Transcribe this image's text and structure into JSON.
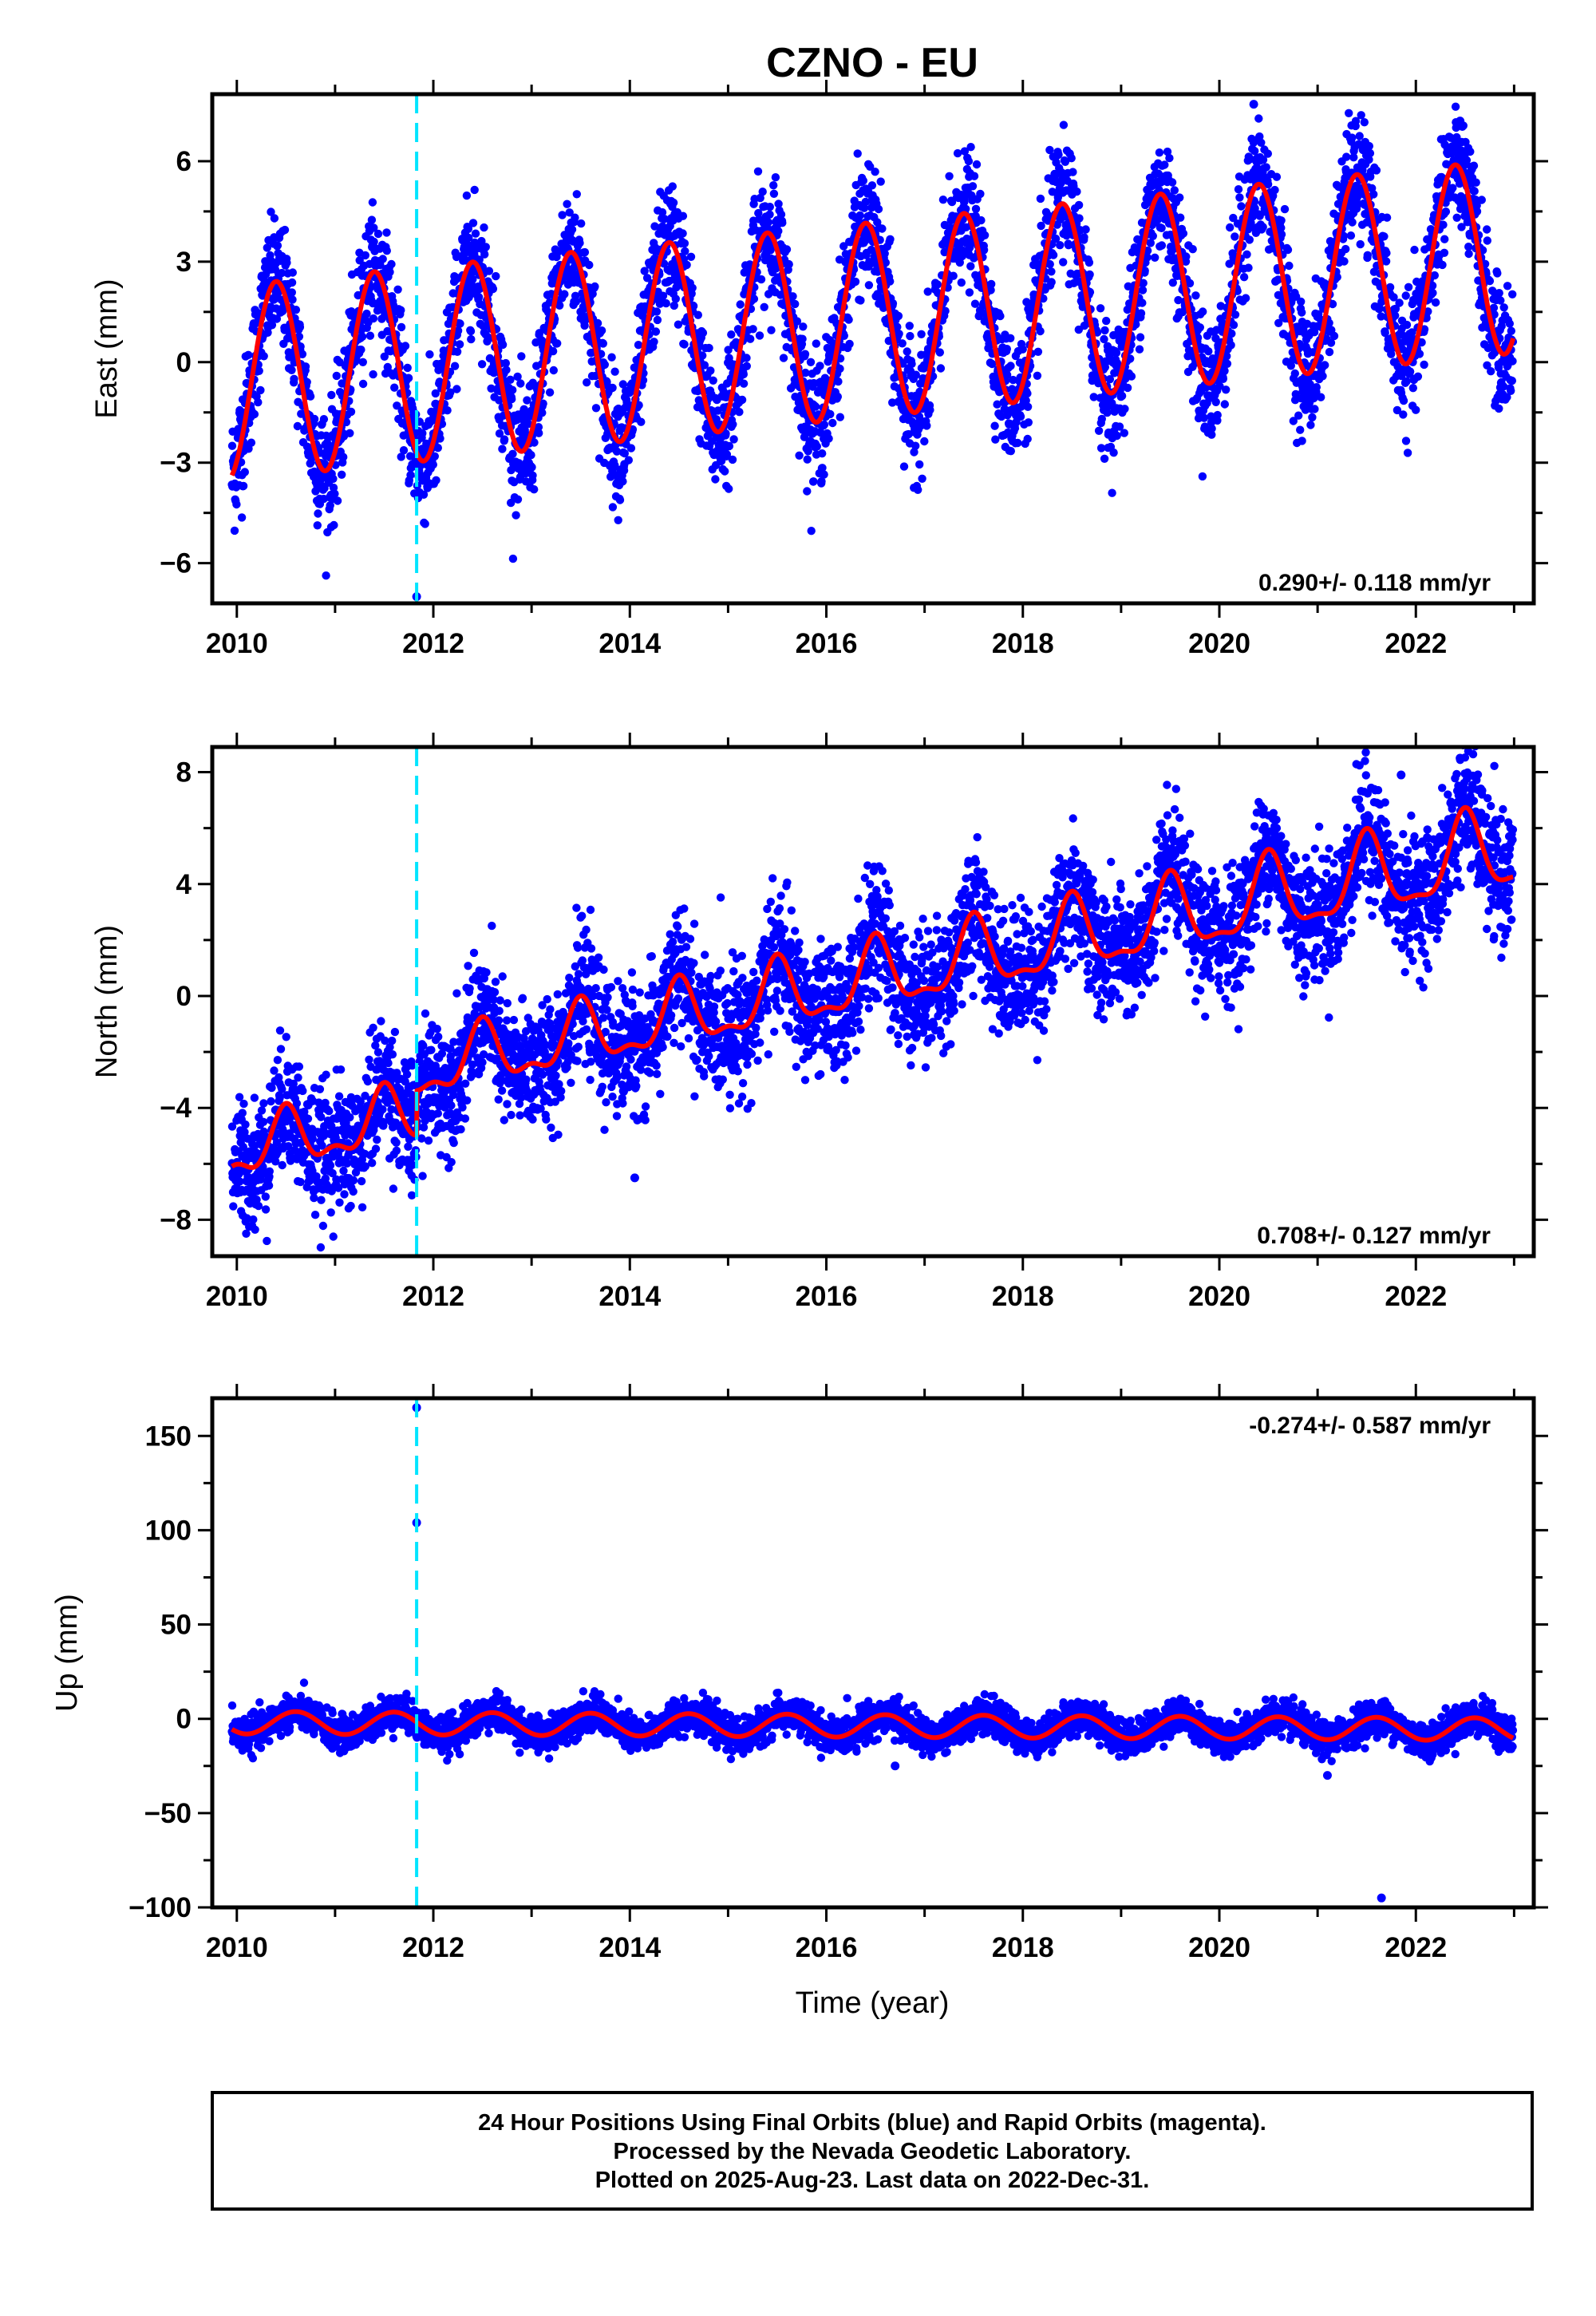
{
  "title": "CZNO - EU",
  "xlabel": "Time (year)",
  "footer": {
    "line1": "24 Hour Positions Using Final Orbits (blue) and Rapid Orbits (magenta).",
    "line2": "Processed by the Nevada Geodetic Laboratory.",
    "line3": "Plotted on 2025-Aug-23. Last data on 2022-Dec-31."
  },
  "colors": {
    "points": "#0000ff",
    "model": "#ff0000",
    "event": "#00e5ff",
    "frame": "#000000"
  },
  "chart_data": [
    {
      "type": "scatter",
      "component": "east",
      "ylabel": "East (mm)",
      "rate_label": "0.290+/- 0.118 mm/yr",
      "xlim": [
        2009.75,
        2023.2
      ],
      "ylim": [
        -7.2,
        8
      ],
      "xticks": [
        2010,
        2012,
        2014,
        2016,
        2018,
        2020,
        2022
      ],
      "yticks": [
        -6,
        -3,
        0,
        3,
        6
      ],
      "yticklabels": [
        "−6",
        "−3",
        "0",
        "3",
        "6"
      ],
      "event_x": 2011.83,
      "model": {
        "t_start": 2009.95,
        "t_end": 2022.99,
        "t_ref": 2009.95,
        "offset": -0.62,
        "rate": 0.29,
        "amplitude": 2.9,
        "amplitude_rate": 0.0,
        "phase_peak": 0.4,
        "step_time": 2011.83,
        "step": 0,
        "semi_annual": 0.0
      },
      "scatter": {
        "sigma": 0.9,
        "outliers": [
          [
            2011.83,
            -7.0
          ],
          [
            2020.35,
            7.7
          ],
          [
            2022.45,
            7.2
          ]
        ]
      }
    },
    {
      "type": "scatter",
      "component": "north",
      "ylabel": "North (mm)",
      "rate_label": "0.708+/- 0.127 mm/yr",
      "xlim": [
        2009.75,
        2023.2
      ],
      "ylim": [
        -9.3,
        8.9
      ],
      "xticks": [
        2010,
        2012,
        2014,
        2016,
        2018,
        2020,
        2022
      ],
      "yticks": [
        -8,
        -4,
        0,
        4,
        8
      ],
      "yticklabels": [
        "−8",
        "−4",
        "0",
        "4",
        "8"
      ],
      "event_x": 2011.83,
      "model": {
        "t_start": 2009.95,
        "t_end": 2022.99,
        "t_ref": 2009.95,
        "offset": -5.6,
        "rate": 0.708,
        "amplitude": 0.9,
        "amplitude_rate": 0.04,
        "phase_peak": 0.5,
        "step_time": 2011.83,
        "step": 1.6,
        "semi_annual": 0.45
      },
      "scatter": {
        "sigma": 1.1,
        "outliers": [
          [
            2014.05,
            -6.5
          ],
          [
            2021.85,
            7.9
          ],
          [
            2022.45,
            8.5
          ]
        ]
      }
    },
    {
      "type": "scatter",
      "component": "up",
      "ylabel": "Up (mm)",
      "rate_label": "-0.274+/- 0.587 mm/yr",
      "xlim": [
        2009.75,
        2023.2
      ],
      "ylim": [
        -100,
        170
      ],
      "xticks": [
        2010,
        2012,
        2014,
        2016,
        2018,
        2020,
        2022
      ],
      "yticks": [
        -100,
        -50,
        0,
        50,
        100,
        150
      ],
      "yticklabels": [
        "−100",
        "−50",
        "0",
        "50",
        "100",
        "150"
      ],
      "event_x": 2011.83,
      "model": {
        "t_start": 2009.95,
        "t_end": 2022.99,
        "t_ref": 2009.95,
        "offset": -2,
        "rate": -0.274,
        "amplitude": 6,
        "amplitude_rate": 0.0,
        "phase_peak": 0.6,
        "step_time": 2011.83,
        "step": 0,
        "semi_annual": 0.0
      },
      "scatter": {
        "sigma": 4.5,
        "outliers": [
          [
            2011.83,
            165
          ],
          [
            2011.83,
            104
          ],
          [
            2021.65,
            -95
          ],
          [
            2021.1,
            -30
          ],
          [
            2016.7,
            -25
          ]
        ]
      }
    }
  ]
}
